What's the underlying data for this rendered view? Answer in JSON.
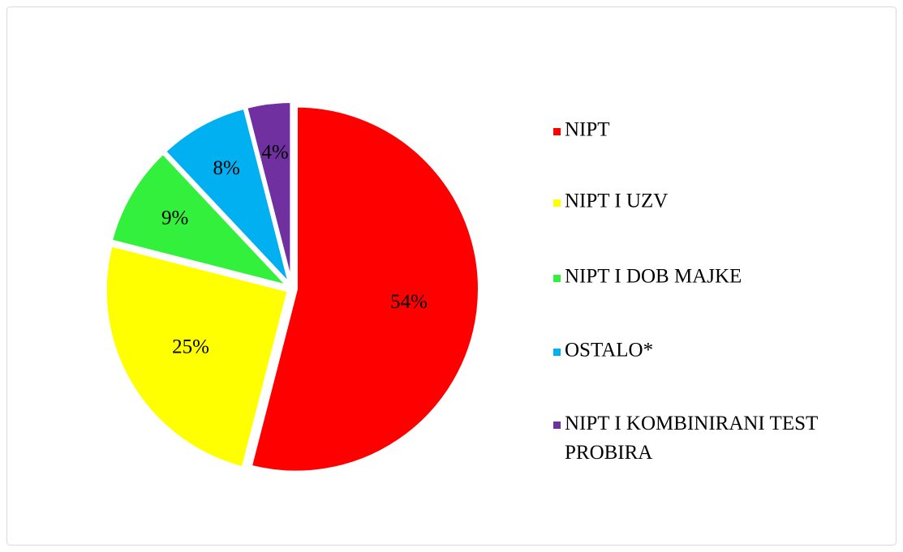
{
  "chart_data": {
    "type": "pie",
    "categories": [
      "NIPT",
      "NIPT I UZV",
      "NIPT I DOB MAJKE",
      "OSTALO*",
      "NIPT I KOMBINIRANI TEST PROBIRA"
    ],
    "values": [
      54,
      25,
      9,
      8,
      4
    ],
    "value_labels": [
      "54%",
      "25%",
      "9%",
      "8%",
      "4%"
    ],
    "colors": [
      "#ff0000",
      "#ffff00",
      "#33f03c",
      "#00b0f0",
      "#7030a0"
    ],
    "legend": "right"
  }
}
